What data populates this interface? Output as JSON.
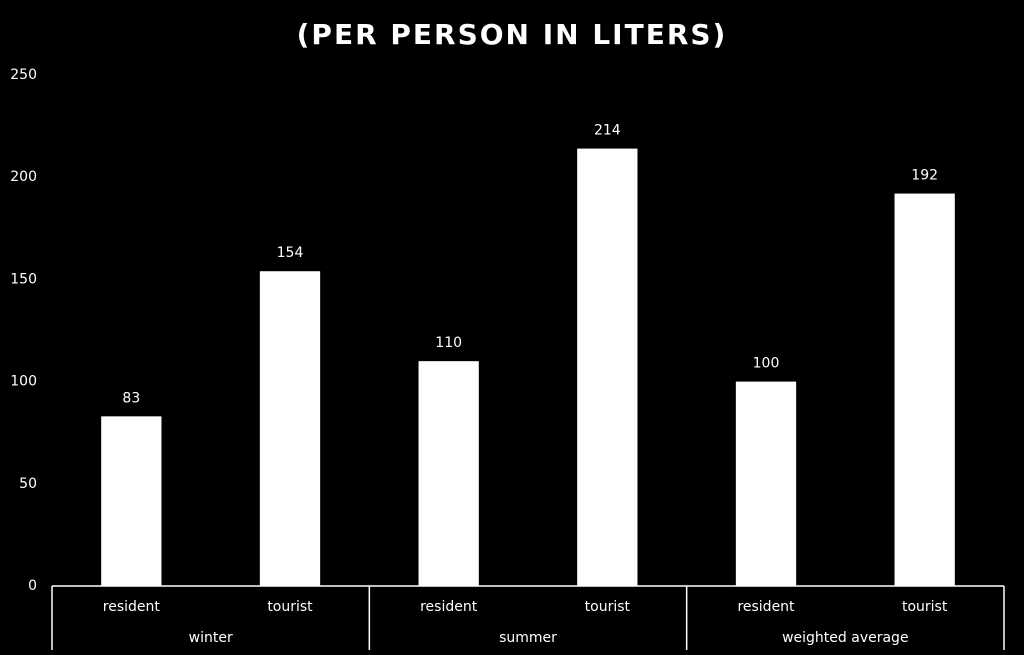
{
  "chart_data": {
    "type": "bar",
    "title": "(PER PERSON IN LITERS)",
    "categories": [
      "resident",
      "tourist",
      "resident",
      "tourist",
      "resident",
      "tourist"
    ],
    "groups": [
      "winter",
      "summer",
      "weighted average"
    ],
    "values": [
      83,
      154,
      110,
      214,
      100,
      192
    ],
    "color": "#ffffff",
    "ylim": [
      0,
      250
    ],
    "yticks": [
      0,
      50,
      100,
      150,
      200,
      250
    ],
    "grid": false
  }
}
